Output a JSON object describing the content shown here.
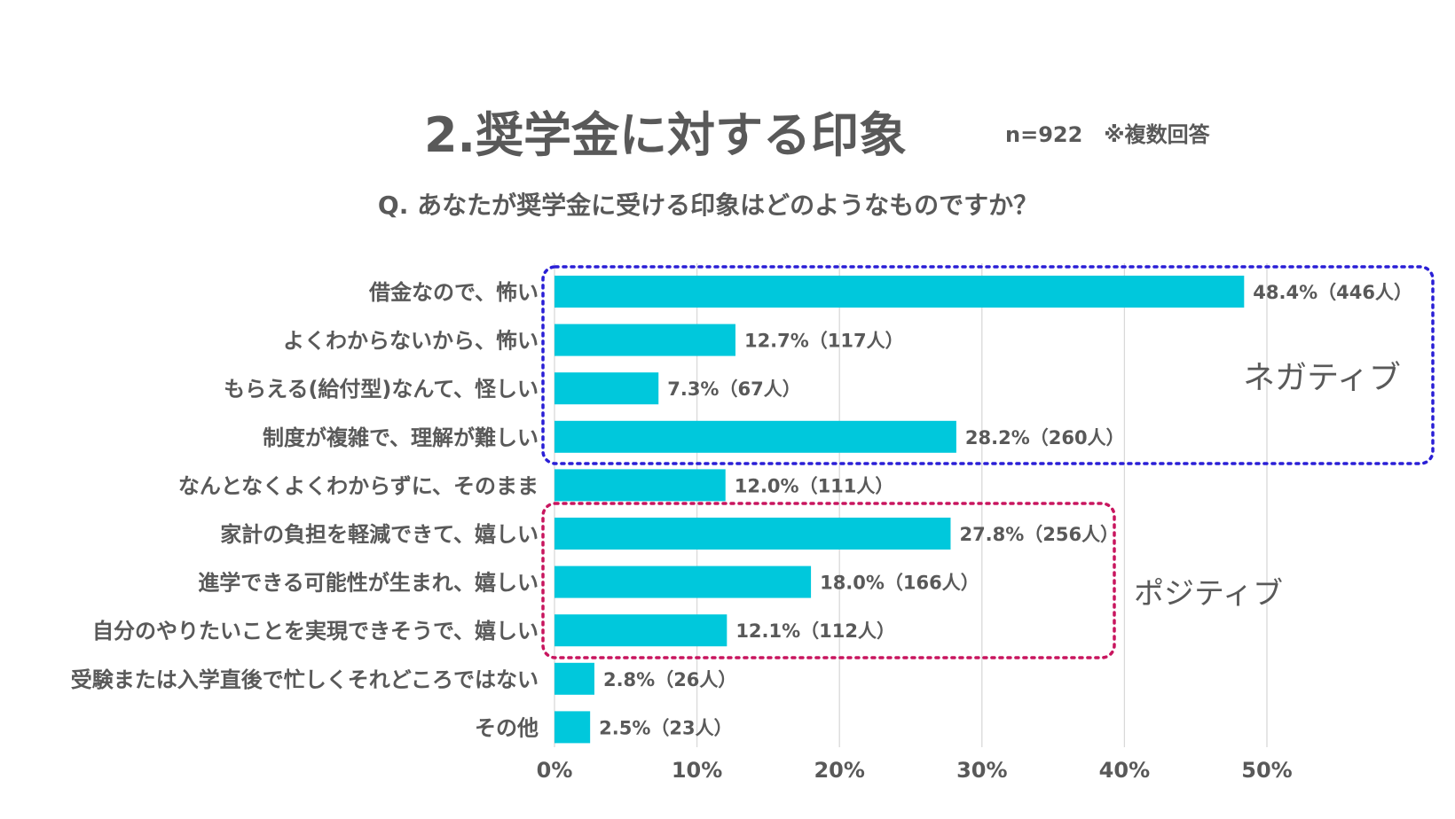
{
  "header": {
    "title": "2.奨学金に対する印象",
    "meta": "n=922　※複数回答",
    "question": "Q. あなたが奨学金に受ける印象はどのようなものですか？"
  },
  "chart_data": {
    "type": "bar",
    "orientation": "horizontal",
    "categories": [
      "借金なので、怖い",
      "よくわからないから、怖い",
      "もらえる(給付型)なんて、怪しい",
      "制度が複雑で、理解が難しい",
      "なんとなくよくわからずに、そのまま",
      "家計の負担を軽減できて、嬉しい",
      "進学できる可能性が生まれ、嬉しい",
      "自分のやりたいことを実現できそうで、嬉しい",
      "受験または入学直後で忙しくそれどころではない",
      "その他"
    ],
    "values": [
      48.4,
      12.7,
      7.3,
      28.2,
      12.0,
      27.8,
      18.0,
      12.1,
      2.8,
      2.5
    ],
    "data_labels": [
      "48.4%（446人）",
      "12.7%（117人）",
      "7.3%（67人）",
      "28.2%（260人）",
      "12.0%（111人）",
      "27.8%（256人）",
      "18.0%（166人）",
      "12.1%（112人）",
      "2.8%（26人）",
      "2.5%（23人）"
    ],
    "x_ticks": [
      "0%",
      "10%",
      "20%",
      "30%",
      "40%",
      "50%"
    ],
    "xlim": [
      0,
      60
    ],
    "grid": true,
    "bar_color": "#00C8DC",
    "groups": [
      {
        "label": "ネガティブ",
        "range": [
          0,
          3
        ],
        "border_color": "#2A1FD6"
      },
      {
        "label": "ポジティブ",
        "range": [
          5,
          7
        ],
        "border_color": "#C8155E"
      }
    ]
  }
}
